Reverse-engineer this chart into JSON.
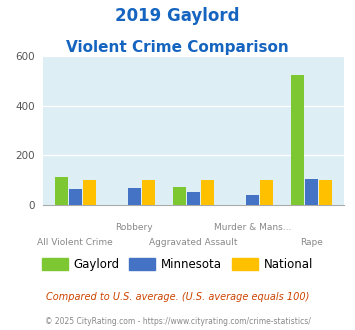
{
  "title_line1": "2019 Gaylord",
  "title_line2": "Violent Crime Comparison",
  "categories": [
    "All Violent Crime",
    "Robbery",
    "Aggravated Assault",
    "Murder & Mans...",
    "Rape"
  ],
  "x_labels_top": [
    "",
    "Robbery",
    "",
    "Murder & Mans...",
    ""
  ],
  "x_labels_bottom": [
    "All Violent Crime",
    "",
    "Aggravated Assault",
    "",
    "Rape"
  ],
  "gaylord": [
    110,
    0,
    70,
    0,
    525
  ],
  "minnesota": [
    65,
    68,
    52,
    40,
    105
  ],
  "national": [
    100,
    100,
    100,
    100,
    100
  ],
  "colors": {
    "gaylord": "#7dc832",
    "minnesota": "#4472c4",
    "national": "#ffc000"
  },
  "ylim": [
    0,
    600
  ],
  "yticks": [
    0,
    200,
    400,
    600
  ],
  "bg_color": "#ddeef5",
  "title_color": "#1565c0",
  "footer_text": "Compared to U.S. average. (U.S. average equals 100)",
  "footer2_text": "© 2025 CityRating.com - https://www.cityrating.com/crime-statistics/",
  "footer_color": "#cc4400",
  "footer2_color": "#888888",
  "legend_labels": [
    "Gaylord",
    "Minnesota",
    "National"
  ]
}
